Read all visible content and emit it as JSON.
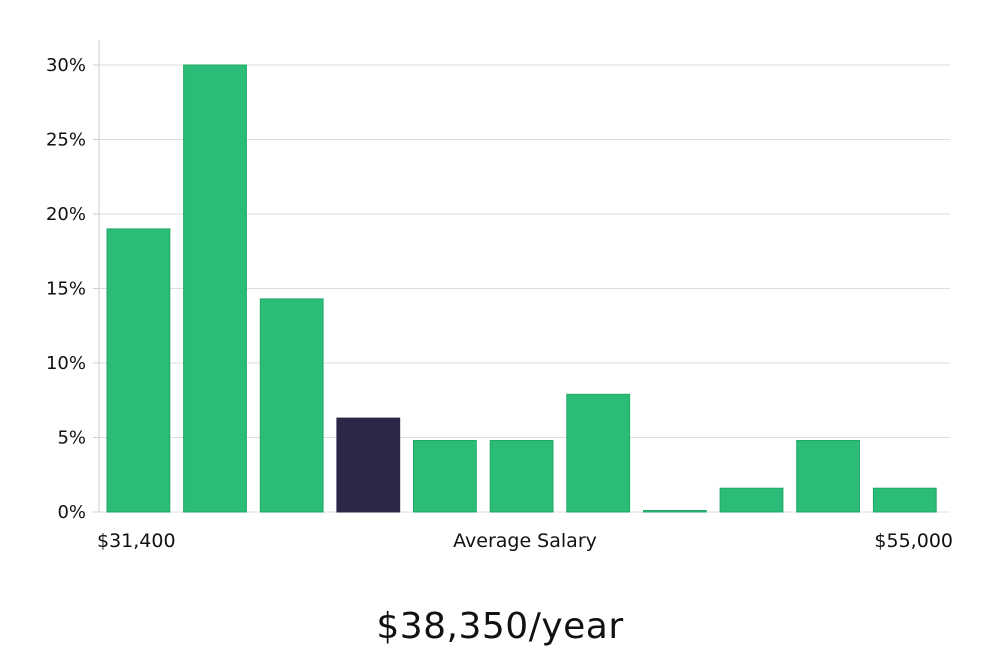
{
  "chart_data": {
    "type": "bar",
    "xlabel": "Average Salary",
    "x_min_label": "$31,400",
    "x_max_label": "$55,000",
    "ylim": [
      0,
      30
    ],
    "y_ticks": [
      "0%",
      "5%",
      "10%",
      "15%",
      "20%",
      "25%",
      "30%"
    ],
    "values": [
      19,
      30,
      14.3,
      6.3,
      4.8,
      4.8,
      7.9,
      0.1,
      1.6,
      4.8,
      1.6
    ],
    "highlight_index": 3,
    "grid": true,
    "colors": {
      "bar": "#2bbd77",
      "bar_stroke": "#22a866",
      "highlight": "#2a2747",
      "grid": "#dddddd",
      "axis": "#cccccc"
    }
  },
  "footer": {
    "salary": "$38,350/year"
  }
}
